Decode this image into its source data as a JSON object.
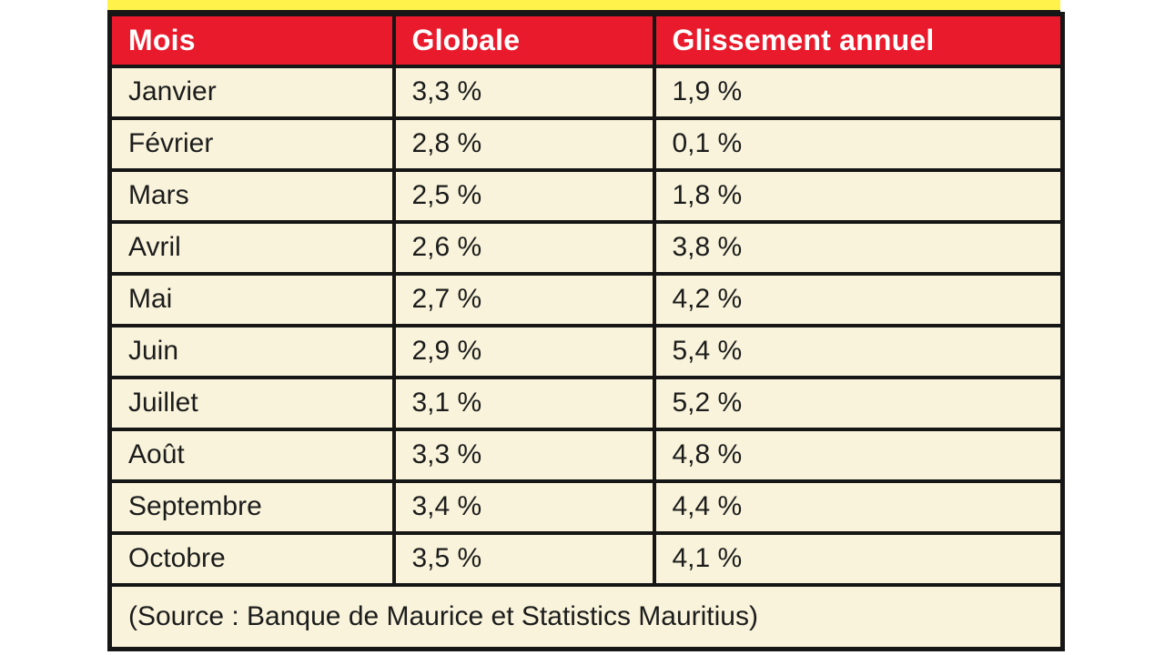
{
  "colors": {
    "banner_yellow": "#FFF24A",
    "header_red": "#E81A2B",
    "cell_cream": "#F8F3DA",
    "border_black": "#161616",
    "header_text": "#FFFFFF",
    "body_text": "#1C1C1C"
  },
  "table": {
    "headers": [
      "Mois",
      "Globale",
      "Glissement annuel"
    ],
    "rows": [
      {
        "mois": "Janvier",
        "globale": "3,3 %",
        "glissement_annuel": "1,9 %"
      },
      {
        "mois": "Février",
        "globale": "2,8 %",
        "glissement_annuel": "0,1 %"
      },
      {
        "mois": "Mars",
        "globale": "2,5 %",
        "glissement_annuel": "1,8 %"
      },
      {
        "mois": "Avril",
        "globale": "2,6 %",
        "glissement_annuel": "3,8 %"
      },
      {
        "mois": "Mai",
        "globale": "2,7 %",
        "glissement_annuel": "4,2 %"
      },
      {
        "mois": "Juin",
        "globale": "2,9 %",
        "glissement_annuel": "5,4 %"
      },
      {
        "mois": "Juillet",
        "globale": "3,1 %",
        "glissement_annuel": "5,2 %"
      },
      {
        "mois": "Août",
        "globale": "3,3 %",
        "glissement_annuel": "4,8 %"
      },
      {
        "mois": "Septembre",
        "globale": "3,4 %",
        "glissement_annuel": "4,4 %"
      },
      {
        "mois": "Octobre",
        "globale": "3,5 %",
        "glissement_annuel": "4,1 %"
      }
    ],
    "source_note": "(Source : Banque de Maurice et Statistics Mauritius)"
  },
  "chart_data": {
    "type": "table",
    "title": "",
    "categories": [
      "Janvier",
      "Février",
      "Mars",
      "Avril",
      "Mai",
      "Juin",
      "Juillet",
      "Août",
      "Septembre",
      "Octobre"
    ],
    "series": [
      {
        "name": "Globale",
        "values": [
          3.3,
          2.8,
          2.5,
          2.6,
          2.7,
          2.9,
          3.1,
          3.3,
          3.4,
          3.5
        ]
      },
      {
        "name": "Glissement annuel",
        "values": [
          1.9,
          0.1,
          1.8,
          3.8,
          4.2,
          5.4,
          5.2,
          4.8,
          4.4,
          4.1
        ]
      }
    ],
    "unit": "%",
    "decimal_style": "comma",
    "source": "(Source : Banque de Maurice et Statistics Mauritius)"
  }
}
